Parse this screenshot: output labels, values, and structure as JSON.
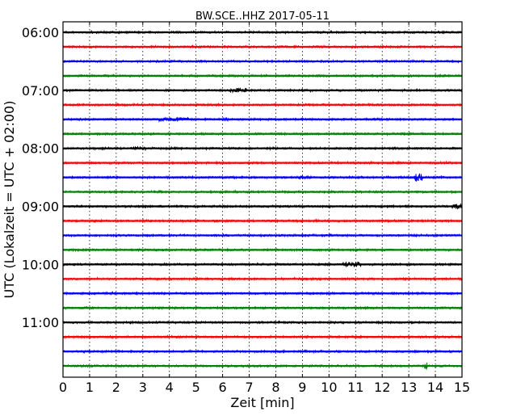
{
  "chart_data": {
    "type": "line",
    "title": "BW.SCE..HHZ 2017-05-11",
    "xlabel": "Zeit  [min]",
    "ylabel": "UTC (Lokalzeit = UTC + 02:00)",
    "xlim": [
      0,
      15
    ],
    "xticks": [
      "0",
      "1",
      "2",
      "3",
      "4",
      "5",
      "6",
      "7",
      "8",
      "9",
      "10",
      "11",
      "12",
      "13",
      "14",
      "15"
    ],
    "ytick_labels": [
      "06:00",
      "07:00",
      "08:00",
      "09:00",
      "10:00",
      "11:00"
    ],
    "grid": "vertical dotted",
    "trace_colors": [
      "#000000",
      "#ff0000",
      "#0000ff",
      "#008000"
    ],
    "traces": [
      "06:00",
      "06:15",
      "06:30",
      "06:45",
      "07:00",
      "07:15",
      "07:30",
      "07:45",
      "08:00",
      "08:15",
      "08:30",
      "08:45",
      "09:00",
      "09:15",
      "09:30",
      "09:45",
      "10:00",
      "10:15",
      "10:30",
      "10:45",
      "11:00",
      "11:15",
      "11:30",
      "11:45"
    ],
    "noise_amplitude": 1,
    "events": [
      {
        "trace": "07:00",
        "start_min": 6.3,
        "end_min": 6.9,
        "amplitude": 2.5
      },
      {
        "trace": "07:30",
        "start_min": 3.6,
        "end_min": 4.7,
        "amplitude": 2.5
      },
      {
        "trace": "07:30",
        "start_min": 6.0,
        "end_min": 6.2,
        "amplitude": 2
      },
      {
        "trace": "08:00",
        "start_min": 2.6,
        "end_min": 3.1,
        "amplitude": 2
      },
      {
        "trace": "08:30",
        "start_min": 8.8,
        "end_min": 9.3,
        "amplitude": 2
      },
      {
        "trace": "08:30",
        "start_min": 13.2,
        "end_min": 13.5,
        "amplitude": 5
      },
      {
        "trace": "09:00",
        "start_min": 14.6,
        "end_min": 15.0,
        "amplitude": 3
      },
      {
        "trace": "10:00",
        "start_min": 10.5,
        "end_min": 11.2,
        "amplitude": 3
      },
      {
        "trace": "11:45",
        "start_min": 13.6,
        "end_min": 13.7,
        "amplitude": 5
      }
    ]
  }
}
